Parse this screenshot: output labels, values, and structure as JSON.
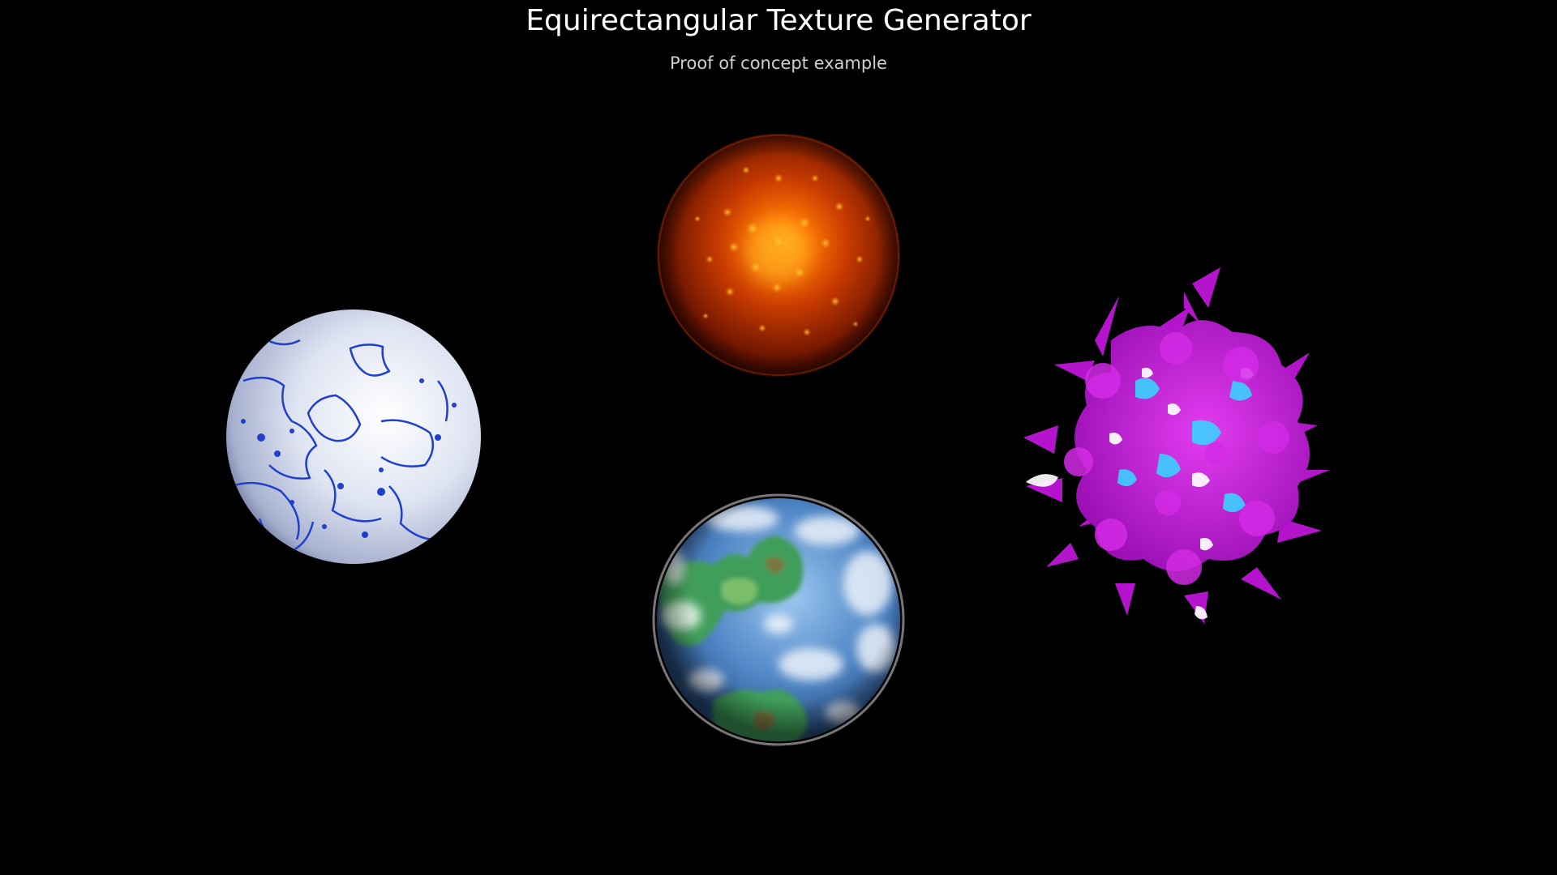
{
  "page": {
    "title": "Equirectangular Texture Generator",
    "subtitle": "Proof of concept example"
  },
  "scene": {
    "background": "#000000",
    "objects": [
      {
        "name": "ice-planet-sphere",
        "texture": "white ice with blue crack lines",
        "colors": [
          "#e8ecf8",
          "#1e3ccc"
        ]
      },
      {
        "name": "lava-sun-sphere",
        "texture": "glowing orange molten core",
        "colors": [
          "#ff6a00",
          "#3a0800"
        ]
      },
      {
        "name": "earth-like-planet-sphere",
        "texture": "blue ocean, green continents, white clouds",
        "colors": [
          "#4f86c6",
          "#3f9e5a",
          "#ffffff"
        ]
      },
      {
        "name": "spiky-blob",
        "texture": "magenta displaced noise with cyan and white highlights",
        "colors": [
          "#c316d6",
          "#3ad2ff",
          "#ffffff"
        ]
      }
    ]
  }
}
